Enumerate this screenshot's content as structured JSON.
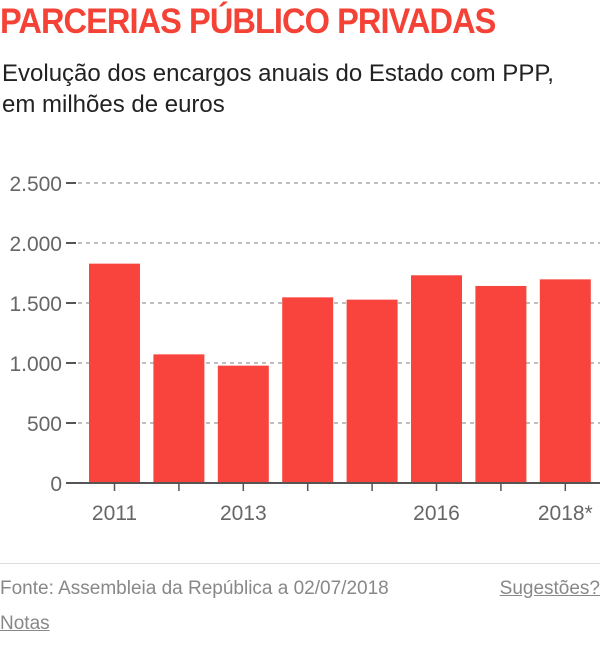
{
  "title": "PARCERIAS PÚBLICO PRIVADAS",
  "subtitle": "Evolução dos encargos anuais do Estado com PPP, em milhões de euros",
  "footer": {
    "source": "Fonte: Assembleia da República a 02/07/2018",
    "suggestions": "Sugestões?",
    "notes": "Notas"
  },
  "chart_data": {
    "type": "bar",
    "categories": [
      "2011",
      "2012",
      "2013",
      "2014",
      "2015",
      "2016",
      "2017",
      "2018*"
    ],
    "x_tick_labels": [
      "2011",
      "",
      "2013",
      "",
      "",
      "2016",
      "",
      "2018*"
    ],
    "values": [
      1828,
      1072,
      978,
      1547,
      1528,
      1731,
      1642,
      1697
    ],
    "y_ticks": [
      0,
      500,
      1000,
      1500,
      2000,
      2500
    ],
    "y_tick_labels": [
      "0",
      "500",
      "1.000",
      "1.500",
      "2.000",
      "2.500"
    ],
    "ylim": [
      0,
      2500
    ],
    "grid": true,
    "bar_color": "#f9443d"
  }
}
